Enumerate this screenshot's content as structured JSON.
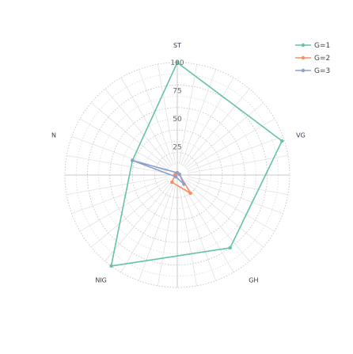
{
  "chart_data": {
    "type": "radar",
    "axes": [
      "ST",
      "VG",
      "GH",
      "NIG",
      "N"
    ],
    "ticks": [
      25,
      50,
      75,
      100
    ],
    "rmax": 100,
    "series": [
      {
        "name": "G=1",
        "color": "#66c2a5",
        "values": [
          100,
          98,
          80,
          100,
          42
        ]
      },
      {
        "name": "G=2",
        "color": "#fc8d62",
        "values": [
          2,
          2,
          20,
          8,
          2
        ]
      },
      {
        "name": "G=3",
        "color": "#8da0cb",
        "values": [
          2,
          2,
          10,
          2,
          42
        ]
      }
    ]
  }
}
